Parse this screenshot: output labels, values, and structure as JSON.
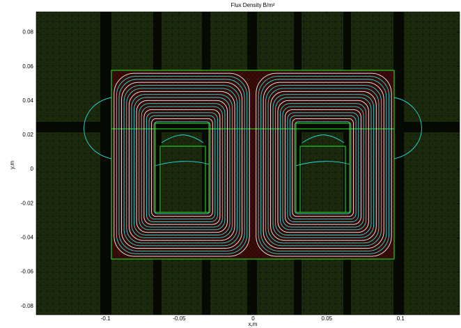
{
  "chart_data": {
    "type": "contour",
    "title": "Flux Density B/m²",
    "xlabel": "x,m",
    "ylabel": "y,m",
    "xlim": [
      -0.147,
      0.14
    ],
    "ylim": [
      -0.085,
      0.092
    ],
    "xticks": [
      -0.1,
      -0.05,
      0,
      0.05,
      0.1
    ],
    "yticks": [
      -0.08,
      -0.06,
      -0.04,
      -0.02,
      0,
      0.02,
      0.04,
      0.06,
      0.08
    ]
  }
}
